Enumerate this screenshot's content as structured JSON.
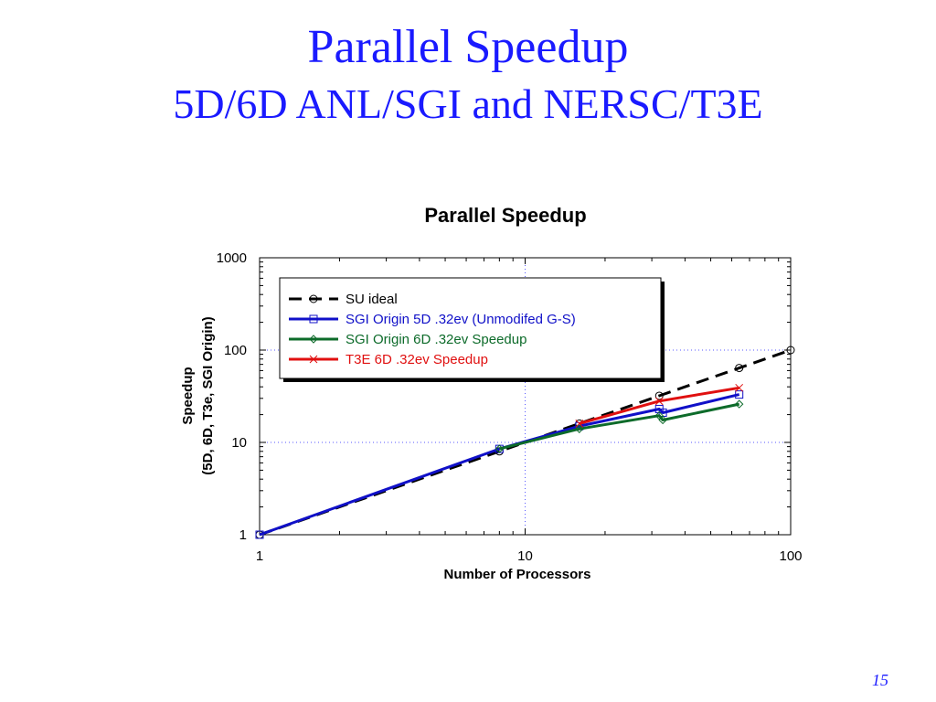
{
  "slide": {
    "title": "Parallel Speedup",
    "subtitle": "5D/6D ANL/SGI and NERSC/T3E",
    "page_number": "15"
  },
  "colors": {
    "title_text": "#1a1aff",
    "grid": "#5a5aff",
    "su_ideal": "#000000",
    "sgi_5d": "#1010c8",
    "sgi_6d": "#0d6b2a",
    "t3e_6d": "#e01010"
  },
  "chart_data": {
    "type": "line",
    "title": "Parallel Speedup",
    "xlabel": "Number of Processors",
    "ylabel": [
      "Speedup",
      "(5D, 6D, T3e, SGI Origin)"
    ],
    "xscale": "log",
    "yscale": "log",
    "xlim": [
      1,
      100
    ],
    "ylim": [
      1,
      1000
    ],
    "xticks": [
      1,
      10,
      100
    ],
    "xtick_labels": [
      "1",
      "10",
      "100"
    ],
    "yticks": [
      1,
      10,
      100,
      1000
    ],
    "ytick_labels": [
      "1",
      "10",
      "100",
      "1000"
    ],
    "grid": true,
    "legend_position": "top-left",
    "series": [
      {
        "name": "SU ideal",
        "color": "#000000",
        "dash": true,
        "marker": "circle",
        "x": [
          1,
          8,
          16,
          32,
          64,
          100
        ],
        "y": [
          1,
          8,
          16,
          32,
          64,
          100
        ]
      },
      {
        "name": "SGI Origin  5D .32ev (Unmodifed G-S)",
        "color": "#1010c8",
        "dash": false,
        "marker": "square",
        "x": [
          1,
          8,
          16,
          32,
          33,
          64
        ],
        "y": [
          1,
          8.5,
          15,
          23,
          21,
          33
        ]
      },
      {
        "name": "SGI Origin 6D .32ev Speedup",
        "color": "#0d6b2a",
        "dash": false,
        "marker": "diamond",
        "x": [
          8,
          16,
          32,
          33,
          64
        ],
        "y": [
          8.5,
          14,
          19.5,
          17.5,
          26
        ]
      },
      {
        "name": "T3E 6D .32ev Speedup",
        "color": "#e01010",
        "dash": false,
        "marker": "x",
        "x": [
          16,
          32,
          64
        ],
        "y": [
          16,
          28,
          39
        ]
      }
    ]
  }
}
